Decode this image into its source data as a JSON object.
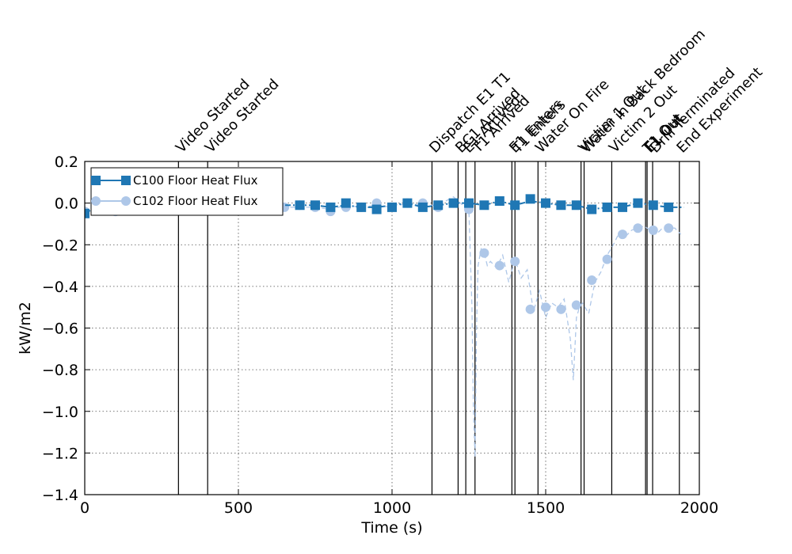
{
  "chart_data": {
    "type": "line",
    "xlabel": "Time (s)",
    "ylabel": "kW/m2",
    "xlim": [
      0,
      2000
    ],
    "ylim": [
      -1.4,
      0.2
    ],
    "x_ticks": [
      0,
      500,
      1000,
      1500,
      2000
    ],
    "x_tick_labels": [
      "0",
      "500",
      "1000",
      "1500",
      "2000"
    ],
    "y_ticks": [
      -1.4,
      -1.2,
      -1.0,
      -0.8,
      -0.6,
      -0.4,
      -0.2,
      0.0,
      0.2
    ],
    "y_tick_labels": [
      "−1.4",
      "−1.2",
      "−1.0",
      "−0.8",
      "−0.6",
      "−0.4",
      "−0.2",
      "0.0",
      "0.2"
    ],
    "grid": true,
    "legend_position": "top-left",
    "events": [
      {
        "t": 305,
        "label": "Video Started"
      },
      {
        "t": 400,
        "label": "Video Started"
      },
      {
        "t": 1130,
        "label": "Dispatch E1 T1"
      },
      {
        "t": 1215,
        "label": "BC1 Arrived"
      },
      {
        "t": 1240,
        "label": "E1 Arrived"
      },
      {
        "t": 1270,
        "label": "T1 Arrived"
      },
      {
        "t": 1390,
        "label": "E1 Enters"
      },
      {
        "t": 1400,
        "label": "T1 Enters"
      },
      {
        "t": 1475,
        "label": "Water On Fire"
      },
      {
        "t": 1615,
        "label": "Victim 1 Out"
      },
      {
        "t": 1625,
        "label": "Water in Back Bedroom"
      },
      {
        "t": 1715,
        "label": "Victim 2 Out"
      },
      {
        "t": 1825,
        "label": "T1 Out"
      },
      {
        "t": 1830,
        "label": "E1 Out"
      },
      {
        "t": 1848,
        "label": "Drill Terminated"
      },
      {
        "t": 1935,
        "label": "End Experiment"
      }
    ],
    "series": [
      {
        "name": "C100 Floor Heat Flux",
        "color": "#1f77b4",
        "marker": "square",
        "line_style": "dash-dot",
        "x": [
          0,
          50,
          100,
          150,
          200,
          250,
          300,
          350,
          400,
          450,
          500,
          550,
          600,
          650,
          700,
          750,
          800,
          850,
          900,
          950,
          1000,
          1050,
          1100,
          1150,
          1200,
          1250,
          1300,
          1350,
          1400,
          1450,
          1500,
          1550,
          1600,
          1650,
          1700,
          1750,
          1800,
          1850,
          1900,
          1950
        ],
        "values": [
          -0.04,
          -0.03,
          -0.04,
          -0.03,
          -0.03,
          -0.04,
          -0.03,
          -0.02,
          -0.03,
          -0.02,
          -0.02,
          -0.01,
          -0.02,
          -0.01,
          -0.01,
          -0.01,
          -0.02,
          -0.01,
          -0.02,
          -0.02,
          -0.01,
          0.0,
          -0.02,
          -0.01,
          0.0,
          0.0,
          -0.01,
          0.01,
          -0.01,
          0.01,
          0.0,
          -0.01,
          -0.01,
          -0.03,
          -0.02,
          -0.02,
          0.0,
          -0.01,
          -0.02,
          -0.02
        ],
        "marker_x": [
          0,
          700,
          750,
          800,
          850,
          900,
          950,
          1000,
          1050,
          1100,
          1150,
          1200,
          1250,
          1300,
          1350,
          1400,
          1450,
          1500,
          1550,
          1600,
          1650,
          1700,
          1750,
          1800,
          1850,
          1900
        ],
        "marker_values": [
          -0.05,
          -0.01,
          -0.01,
          -0.02,
          0.0,
          -0.02,
          -0.03,
          -0.02,
          0.0,
          -0.02,
          -0.01,
          0.0,
          0.0,
          -0.01,
          0.01,
          -0.01,
          0.02,
          0.0,
          -0.01,
          -0.01,
          -0.03,
          -0.02,
          -0.02,
          0.0,
          -0.01,
          -0.02
        ]
      },
      {
        "name": "C102 Floor Heat Flux",
        "color": "#aec7e8",
        "marker": "circle",
        "line_style": "dashed",
        "x": [
          0,
          100,
          200,
          300,
          400,
          500,
          600,
          650,
          700,
          750,
          800,
          850,
          900,
          950,
          1000,
          1050,
          1100,
          1150,
          1200,
          1230,
          1250,
          1260,
          1265,
          1270,
          1275,
          1280,
          1290,
          1300,
          1310,
          1320,
          1340,
          1360,
          1380,
          1400,
          1420,
          1440,
          1460,
          1480,
          1500,
          1520,
          1540,
          1560,
          1580,
          1590,
          1600,
          1610,
          1620,
          1640,
          1660,
          1680,
          1700,
          1720,
          1740,
          1760,
          1780,
          1800,
          1820,
          1840,
          1860,
          1880,
          1900,
          1920,
          1940
        ],
        "values": [
          -0.05,
          -0.05,
          -0.05,
          -0.05,
          -0.03,
          -0.03,
          -0.02,
          -0.02,
          -0.02,
          -0.02,
          -0.03,
          -0.01,
          -0.02,
          -0.01,
          -0.02,
          0.0,
          -0.01,
          -0.01,
          0.03,
          -0.01,
          -0.03,
          -0.5,
          -1.0,
          -1.22,
          -0.6,
          -0.3,
          -0.22,
          -0.24,
          -0.3,
          -0.28,
          -0.31,
          -0.25,
          -0.38,
          -0.27,
          -0.36,
          -0.32,
          -0.52,
          -0.42,
          -0.55,
          -0.48,
          -0.5,
          -0.46,
          -0.65,
          -0.85,
          -0.55,
          -0.5,
          -0.48,
          -0.53,
          -0.38,
          -0.33,
          -0.25,
          -0.2,
          -0.14,
          -0.16,
          -0.13,
          -0.12,
          -0.11,
          -0.13,
          -0.15,
          -0.12,
          -0.12,
          -0.12,
          -0.15
        ],
        "marker_x": [
          0,
          100,
          650,
          700,
          750,
          800,
          850,
          900,
          950,
          1000,
          1050,
          1100,
          1150,
          1200,
          1250,
          1300,
          1350,
          1400,
          1450,
          1500,
          1550,
          1600,
          1650,
          1700,
          1750,
          1800,
          1850,
          1900
        ],
        "marker_values": [
          -0.04,
          -0.04,
          -0.02,
          -0.01,
          -0.02,
          -0.04,
          -0.02,
          -0.02,
          0.0,
          -0.02,
          0.0,
          0.0,
          -0.02,
          0.0,
          -0.03,
          -0.24,
          -0.3,
          -0.28,
          -0.51,
          -0.5,
          -0.51,
          -0.49,
          -0.37,
          -0.27,
          -0.15,
          -0.12,
          -0.13,
          -0.12
        ]
      }
    ]
  }
}
